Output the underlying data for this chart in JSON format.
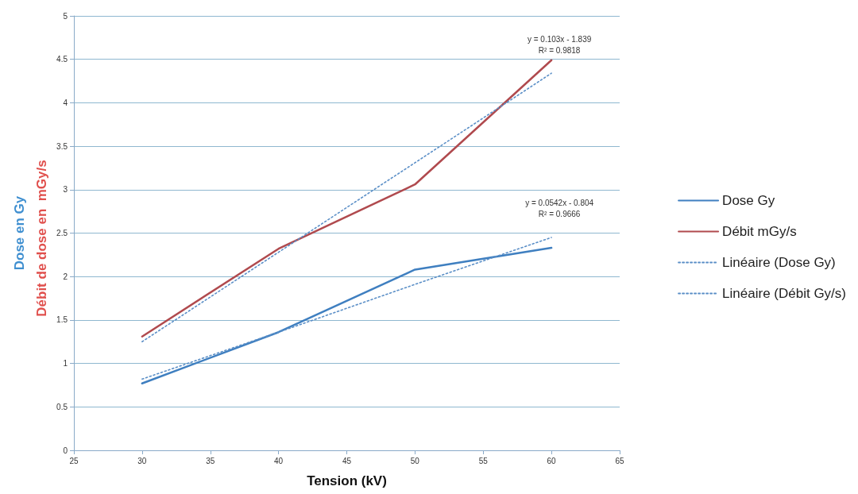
{
  "chart_data": {
    "type": "line",
    "xlabel": "Tension (kV)",
    "ylabel": "Dose en Gy",
    "x": [
      30,
      40,
      50,
      60
    ],
    "series": [
      {
        "name": "Dose Gy",
        "color": "#3f7fc0",
        "values": [
          0.77,
          1.36,
          2.08,
          2.33
        ],
        "line_style": "solid"
      },
      {
        "name": "Débit mGy/s",
        "color": "#b04a4e",
        "values": [
          1.31,
          2.32,
          3.06,
          4.49
        ],
        "line_style": "solid"
      },
      {
        "name": "Linéaire (Dose Gy)",
        "color": "#5b8fc7",
        "values": [
          0.82,
          1.36,
          1.91,
          2.45
        ],
        "line_style": "dotted"
      },
      {
        "name": "Linéaire (Débit Gy/s)",
        "color": "#5b8fc7",
        "values": [
          1.25,
          2.28,
          3.31,
          4.34
        ],
        "line_style": "dotted"
      }
    ],
    "annotations": [
      "Débit de dose en  mGy/s",
      {
        "text": "y = 0.0542x - 0.804\nR² = 0.9666",
        "x": 60,
        "y": 2.45
      },
      {
        "text": "y = 0.103x - 1.839\nR² = 0.9818",
        "x": 60,
        "y": 4.34
      }
    ],
    "xlim": [
      25,
      65
    ],
    "xticks": [
      25,
      30,
      35,
      40,
      45,
      50,
      55,
      60,
      65
    ],
    "ylim": [
      0,
      5
    ],
    "yticks": [
      0,
      0.5,
      1,
      1.5,
      2,
      2.5,
      3,
      3.5,
      4,
      4.5,
      5
    ],
    "grid": "y",
    "legend": "right",
    "marker": "none"
  }
}
